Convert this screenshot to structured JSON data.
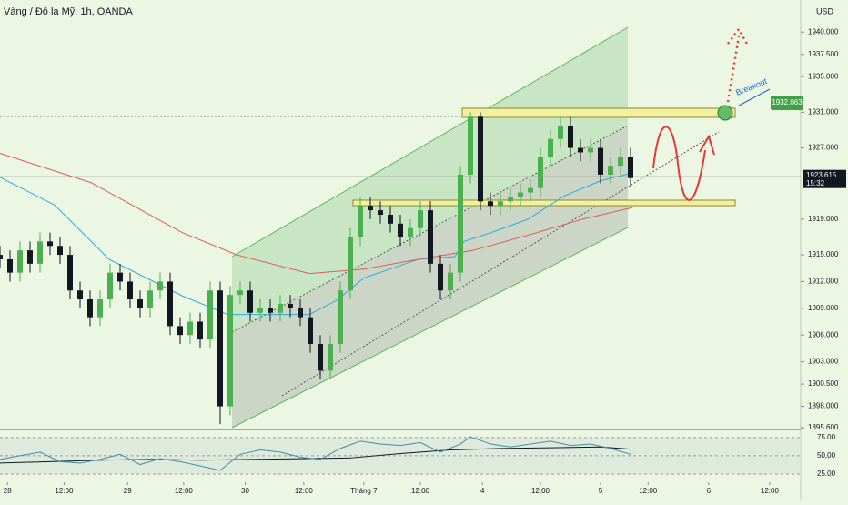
{
  "chart_data": [
    {
      "type": "candlestick",
      "title": "Vàng / Đô la Mỹ, 1h, OANDA",
      "currency": "USD",
      "up_color": "#4caf50",
      "down_color": "#131722",
      "x": [
        0,
        2,
        4,
        6,
        8,
        10,
        12,
        14,
        16,
        18,
        20,
        22,
        24,
        26,
        28,
        30,
        32,
        34,
        36,
        38,
        40,
        42,
        44,
        46,
        48,
        50,
        52,
        54,
        56,
        58,
        60,
        62,
        64,
        66,
        68,
        70,
        72,
        74,
        76,
        78,
        80,
        82,
        84,
        86,
        88,
        90,
        92,
        94,
        96,
        98,
        100,
        102,
        104,
        106,
        108,
        110,
        112,
        114,
        116,
        118,
        120,
        122,
        124,
        126
      ],
      "open": [
        1915,
        1914.5,
        1913,
        1915.5,
        1914,
        1916.5,
        1916,
        1915,
        1911,
        1910,
        1908,
        1910,
        1913,
        1912,
        1910,
        1909,
        1911,
        1912,
        1907,
        1906,
        1907.5,
        1905.5,
        1911,
        1898,
        1910.5,
        1911,
        1908.5,
        1909,
        1908.5,
        1909.5,
        1909,
        1908,
        1905,
        1902,
        1905,
        1911,
        1917,
        1920.5,
        1920,
        1919.5,
        1918.5,
        1917,
        1918,
        1920,
        1914,
        1911,
        1913,
        1924,
        1930.5,
        1921,
        1920.5,
        1921,
        1921.5,
        1922,
        1922.5,
        1926,
        1928,
        1929.5,
        1927,
        1926.5,
        1927,
        1924,
        1925,
        1926
      ],
      "high": [
        1916,
        1915.5,
        1916.5,
        1916.5,
        1917.5,
        1917.5,
        1917,
        1916,
        1912,
        1911,
        1911,
        1914,
        1914,
        1913,
        1911,
        1912,
        1913,
        1913,
        1908,
        1908.5,
        1908.5,
        1912,
        1912,
        1911.5,
        1912,
        1912,
        1910,
        1910,
        1910.5,
        1910.5,
        1910,
        1909,
        1906,
        1906,
        1912,
        1918,
        1921.5,
        1921.5,
        1921,
        1920.5,
        1919.5,
        1919,
        1921,
        1921,
        1915,
        1914,
        1925,
        1931,
        1931,
        1922,
        1922,
        1922.5,
        1923,
        1923.5,
        1927,
        1929,
        1930.5,
        1930.5,
        1928,
        1928,
        1928,
        1926,
        1927,
        1927
      ],
      "low": [
        1913.5,
        1912,
        1912,
        1913,
        1913,
        1915,
        1914,
        1910,
        1909,
        1907,
        1907,
        1909,
        1911,
        1909,
        1908,
        1908,
        1910,
        1906,
        1905,
        1905,
        1904.5,
        1904.5,
        1896,
        1897,
        1909.5,
        1907.5,
        1907.5,
        1907.5,
        1907.5,
        1908,
        1907,
        1904,
        1901,
        1901,
        1904,
        1910,
        1916,
        1919,
        1918.5,
        1917.5,
        1916,
        1916,
        1917,
        1913,
        1910,
        1910,
        1912,
        1923,
        1920,
        1919.5,
        1919.5,
        1920,
        1920.5,
        1921,
        1921.5,
        1925,
        1927,
        1926,
        1925.5,
        1925.5,
        1923,
        1923,
        1924,
        1922.6
      ],
      "close": [
        1914.5,
        1913,
        1915.5,
        1914,
        1916.5,
        1916,
        1915,
        1911,
        1910,
        1908,
        1910,
        1913,
        1912,
        1910,
        1909,
        1911,
        1912,
        1907,
        1906,
        1907.5,
        1905.5,
        1911,
        1898,
        1910.5,
        1911,
        1908.5,
        1909,
        1908.5,
        1909.5,
        1909,
        1908,
        1905,
        1902,
        1905,
        1911,
        1917,
        1920.5,
        1920,
        1919.5,
        1918.5,
        1917,
        1918,
        1920,
        1914,
        1911,
        1913,
        1924,
        1930.5,
        1921,
        1920.5,
        1921,
        1921.5,
        1922,
        1922.5,
        1926,
        1928,
        1929.5,
        1927,
        1926.5,
        1927,
        1924,
        1925,
        1926,
        1923.615
      ],
      "series": [
        {
          "color": "#29a9e0",
          "x": [
            0,
            10.9,
            21.8,
            36.4,
            45.5,
            54.5,
            61.8,
            67.3,
            72.7,
            83.6,
            90.9,
            92.7,
            98.2,
            105.5,
            112.7,
            120,
            126.4
          ],
          "values": [
            1923.7,
            1920.6,
            1914.5,
            1910.4,
            1908.3,
            1908.3,
            1908.3,
            1909.9,
            1912.4,
            1914.5,
            1914.8,
            1916.5,
            1917.5,
            1919,
            1921.6,
            1923.3,
            1924.2
          ]
        },
        {
          "color": "#e05a5a",
          "x": [
            0,
            18.2,
            36.4,
            47.3,
            61.8,
            72.7,
            83.6,
            94.5,
            105.5,
            116.4,
            126.4
          ],
          "values": [
            1926.4,
            1923.1,
            1917.5,
            1915,
            1912.9,
            1913.4,
            1914.5,
            1915.5,
            1917.2,
            1919,
            1920.3
          ]
        }
      ],
      "last_price": 1923.615,
      "countdown": "15:32",
      "target": 1932.063,
      "annotation": "Breakout",
      "xlim": [
        0,
        160
      ],
      "ylim": [
        1895.4,
        1943.6
      ],
      "yticks": [
        {
          "value": 1895.6,
          "label": "1895.600"
        },
        {
          "value": 1898,
          "label": "1898.000"
        },
        {
          "value": 1900.5,
          "label": "1900.500"
        },
        {
          "value": 1903,
          "label": "1903.000"
        },
        {
          "value": 1906,
          "label": "1906.000"
        },
        {
          "value": 1909,
          "label": "1909.000"
        },
        {
          "value": 1912,
          "label": "1912.000"
        },
        {
          "value": 1915,
          "label": "1915.000"
        },
        {
          "value": 1919,
          "label": "1919.000"
        },
        {
          "value": 1927,
          "label": "1927.000"
        },
        {
          "value": 1931,
          "label": "1931.000"
        },
        {
          "value": 1935,
          "label": "1935.000"
        },
        {
          "value": 1937.5,
          "label": "1937.500"
        },
        {
          "value": 1940,
          "label": "1940.000"
        }
      ],
      "xticks": [
        {
          "value": 1.5,
          "label": "28"
        },
        {
          "value": 12.8,
          "label": "12:00"
        },
        {
          "value": 25.5,
          "label": "29"
        },
        {
          "value": 36.7,
          "label": "12:00"
        },
        {
          "value": 49,
          "label": "30"
        },
        {
          "value": 60.7,
          "label": "12:00"
        },
        {
          "value": 72.7,
          "label": "Tháng 7"
        },
        {
          "value": 84,
          "label": "12:00"
        },
        {
          "value": 96.4,
          "label": "4"
        },
        {
          "value": 108,
          "label": "12:00"
        },
        {
          "value": 120,
          "label": "5"
        },
        {
          "value": 129.5,
          "label": "12:00"
        },
        {
          "value": 141.6,
          "label": "6"
        },
        {
          "value": 153.8,
          "label": "12:00"
        }
      ]
    },
    {
      "type": "line",
      "band_color": "#d6e3d6",
      "series": [
        {
          "color": "#131722",
          "x": [
            0,
            10,
            20,
            30,
            40,
            50,
            60,
            70,
            80,
            90,
            100,
            110,
            120,
            126
          ],
          "values": [
            40,
            42,
            44,
            45,
            44,
            45,
            46,
            47,
            53,
            58,
            60,
            61,
            62,
            59
          ]
        },
        {
          "color": "#3f8fa8",
          "x": [
            0,
            4,
            8,
            12,
            16,
            20,
            24,
            28,
            32,
            36,
            40,
            44,
            48,
            52,
            56,
            60,
            64,
            68,
            72,
            76,
            80,
            84,
            88,
            92,
            94,
            98,
            102,
            106,
            110,
            114,
            118,
            122,
            126
          ],
          "values": [
            45,
            50,
            55,
            42,
            40,
            45,
            52,
            38,
            46,
            42,
            36,
            30,
            52,
            58,
            55,
            48,
            45,
            60,
            70,
            66,
            64,
            68,
            55,
            66,
            76,
            66,
            62,
            66,
            70,
            64,
            66,
            60,
            52
          ]
        }
      ],
      "ylim": [
        20,
        81
      ],
      "yticks": [
        {
          "value": 75,
          "label": "75.00"
        },
        {
          "value": 50,
          "label": "50.00"
        },
        {
          "value": 25,
          "label": "25.00"
        }
      ]
    }
  ]
}
